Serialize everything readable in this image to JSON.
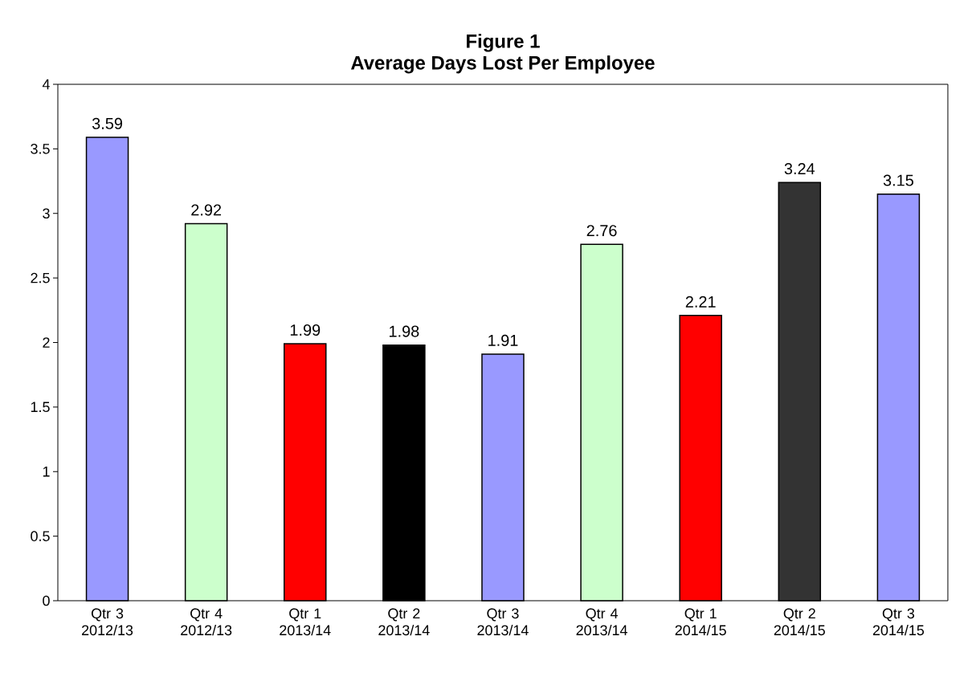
{
  "chart_data": {
    "type": "bar",
    "title": "Figure 1",
    "subtitle": "Average Days Lost Per Employee",
    "categories": [
      "Qtr 3 2012/13",
      "Qtr 4 2012/13",
      "Qtr 1 2013/14",
      "Qtr 2 2013/14",
      "Qtr 3 2013/14",
      "Qtr 4 2013/14",
      "Qtr 1 2014/15",
      "Qtr 2 2014/15",
      "Qtr 3 2014/15"
    ],
    "values": [
      3.59,
      2.92,
      1.99,
      1.98,
      1.91,
      2.76,
      2.21,
      3.24,
      3.15
    ],
    "colors": [
      "#9999ff",
      "#ccffcc",
      "#ff0000",
      "#000000",
      "#9999ff",
      "#ccffcc",
      "#ff0000",
      "#333333",
      "#9999ff"
    ],
    "ylim": [
      0,
      4
    ],
    "yticks": [
      0,
      0.5,
      1,
      1.5,
      2,
      2.5,
      3,
      3.5,
      4
    ],
    "data_labels": true,
    "grid": false
  }
}
